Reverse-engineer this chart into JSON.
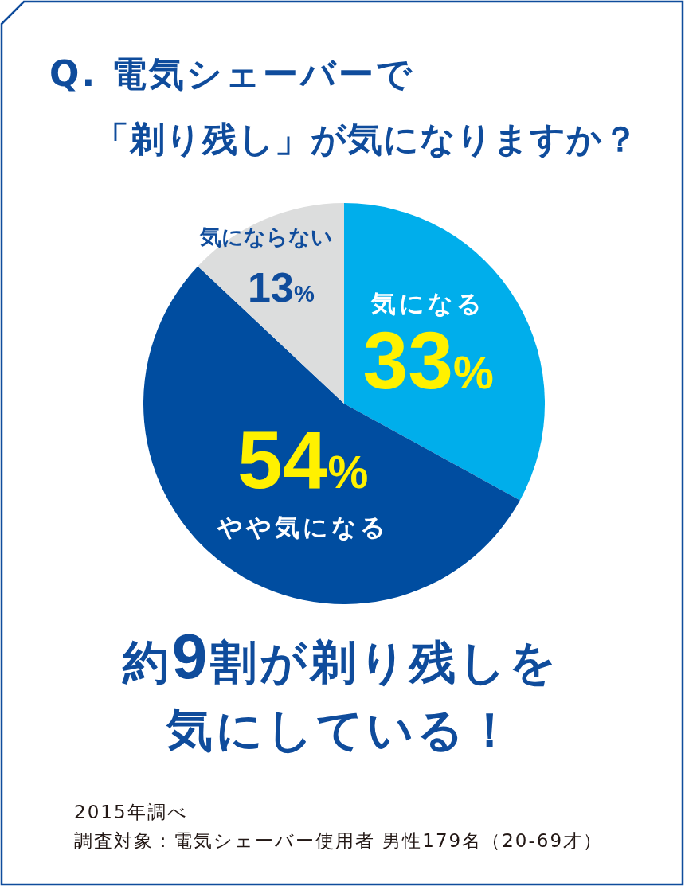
{
  "chart_data": {
    "type": "pie",
    "title": "Q. 電気シェーバーで",
    "subtitle": "「剃り残し」が気になりますか？",
    "categories": [
      "気になる",
      "やや気になる",
      "気にならない"
    ],
    "values": [
      33,
      54,
      13
    ],
    "colors": [
      "#00aeeb",
      "#004da0",
      "#dcdddd"
    ],
    "value_labels": [
      "33%",
      "54%",
      "13%"
    ],
    "annotations": [
      "約9割が剃り残しを",
      "気にしている！",
      "2015年調べ",
      "調査対象：電気シェーバー使用者 男性179名（20-69才）"
    ]
  }
}
